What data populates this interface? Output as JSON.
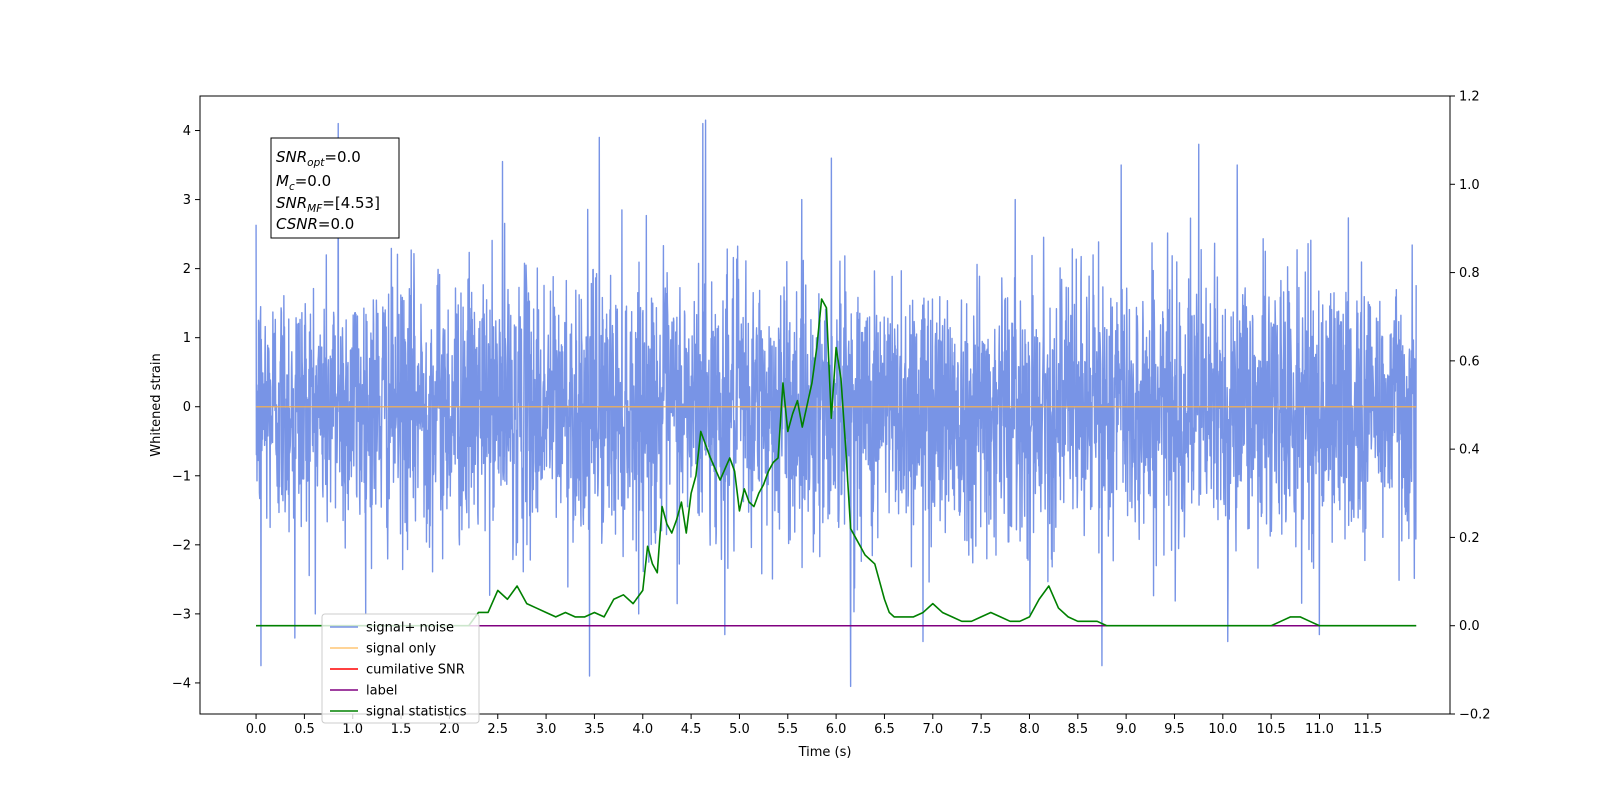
{
  "chart_data": {
    "type": "line",
    "title": "",
    "xlabel": "Time (s)",
    "ylabel": "Whitened strain",
    "xlim": [
      -0.58,
      12.35
    ],
    "ylim": [
      -4.45,
      4.5
    ],
    "y2lim": [
      -0.2,
      1.2
    ],
    "x_ticks": [
      0.0,
      0.5,
      1.0,
      1.5,
      2.0,
      2.5,
      3.0,
      3.5,
      4.0,
      4.5,
      5.0,
      5.5,
      6.0,
      6.5,
      7.0,
      7.5,
      8.0,
      8.5,
      9.0,
      9.5,
      10.0,
      10.5,
      11.0,
      11.5
    ],
    "x_tick_labels": [
      "0.0",
      "0.5",
      "1.0",
      "1.5",
      "2.0",
      "2.5",
      "3.0",
      "3.5",
      "4.0",
      "4.5",
      "5.0",
      "5.5",
      "6.0",
      "6.5",
      "7.0",
      "7.5",
      "8.0",
      "8.5",
      "9.0",
      "9.5",
      "10.0",
      "10.5",
      "11.0",
      "11.5"
    ],
    "y_ticks": [
      4,
      3,
      2,
      1,
      0,
      -1,
      -2,
      -3,
      -4
    ],
    "y_tick_labels": [
      "4",
      "3",
      "2",
      "1",
      "0",
      "−1",
      "−2",
      "−3",
      "−4"
    ],
    "y2_ticks": [
      1.2,
      1.0,
      0.8,
      0.6,
      0.4,
      0.2,
      0.0,
      -0.2
    ],
    "y2_tick_labels": [
      "1.2",
      "1.0",
      "0.8",
      "0.6",
      "0.4",
      "0.2",
      "0.0",
      "−0.2"
    ],
    "grid": false,
    "legend_position": "lower-left",
    "series": [
      {
        "name": "signal+ noise",
        "axis": "left",
        "color": "#7894e6",
        "noise_envelope": {
          "x_range": [
            0.0,
            12.0
          ],
          "typical_range": [
            -1.9,
            1.9
          ],
          "peaks_high": [
            {
              "x": 0.85,
              "y": 4.1
            },
            {
              "x": 4.62,
              "y": 4.1
            },
            {
              "x": 4.65,
              "y": 4.15
            },
            {
              "x": 3.55,
              "y": 3.9
            },
            {
              "x": 9.75,
              "y": 3.8
            },
            {
              "x": 2.55,
              "y": 3.55
            },
            {
              "x": 5.95,
              "y": 3.6
            },
            {
              "x": 8.95,
              "y": 3.5
            },
            {
              "x": 10.15,
              "y": 3.5
            }
          ],
          "peaks_low": [
            {
              "x": 0.05,
              "y": -3.75
            },
            {
              "x": 3.45,
              "y": -3.9
            },
            {
              "x": 6.15,
              "y": -4.05
            },
            {
              "x": 8.75,
              "y": -3.75
            },
            {
              "x": 10.05,
              "y": -3.4
            },
            {
              "x": 6.9,
              "y": -3.4
            },
            {
              "x": 11.0,
              "y": -3.3
            },
            {
              "x": 4.85,
              "y": -3.3
            },
            {
              "x": 0.4,
              "y": -3.35
            }
          ]
        }
      },
      {
        "name": "signal only",
        "axis": "left",
        "color": "#ffb347",
        "x": [
          0.0,
          12.0
        ],
        "y": [
          0.0,
          0.0
        ]
      },
      {
        "name": "cumilative SNR",
        "axis": "right",
        "color": "#ff0000",
        "x": [],
        "y": []
      },
      {
        "name": "label",
        "axis": "right",
        "color": "#800080",
        "x": [
          0.0,
          12.0
        ],
        "y": [
          0.0,
          0.0
        ]
      },
      {
        "name": "signal statistics",
        "axis": "right",
        "color": "#008000",
        "x": [
          0.0,
          2.2,
          2.3,
          2.4,
          2.5,
          2.6,
          2.7,
          2.8,
          2.9,
          3.0,
          3.1,
          3.2,
          3.3,
          3.4,
          3.5,
          3.6,
          3.7,
          3.8,
          3.9,
          4.0,
          4.05,
          4.1,
          4.15,
          4.2,
          4.25,
          4.3,
          4.35,
          4.4,
          4.45,
          4.5,
          4.55,
          4.6,
          4.65,
          4.7,
          4.8,
          4.9,
          4.95,
          5.0,
          5.05,
          5.1,
          5.15,
          5.2,
          5.25,
          5.3,
          5.35,
          5.4,
          5.45,
          5.5,
          5.55,
          5.6,
          5.65,
          5.7,
          5.75,
          5.8,
          5.85,
          5.9,
          5.95,
          6.0,
          6.05,
          6.1,
          6.15,
          6.2,
          6.25,
          6.3,
          6.35,
          6.4,
          6.45,
          6.5,
          6.55,
          6.6,
          6.7,
          6.8,
          6.9,
          7.0,
          7.1,
          7.2,
          7.3,
          7.4,
          7.5,
          7.6,
          7.7,
          7.8,
          7.9,
          8.0,
          8.1,
          8.2,
          8.3,
          8.4,
          8.5,
          8.6,
          8.7,
          8.8,
          8.9,
          9.0,
          10.5,
          10.6,
          10.7,
          10.8,
          10.9,
          11.0,
          11.1,
          12.0
        ],
        "y": [
          0.0,
          0.0,
          0.03,
          0.03,
          0.08,
          0.06,
          0.09,
          0.05,
          0.04,
          0.03,
          0.02,
          0.03,
          0.02,
          0.02,
          0.03,
          0.02,
          0.06,
          0.07,
          0.05,
          0.08,
          0.18,
          0.14,
          0.12,
          0.27,
          0.23,
          0.21,
          0.24,
          0.28,
          0.21,
          0.3,
          0.34,
          0.44,
          0.41,
          0.38,
          0.33,
          0.38,
          0.35,
          0.26,
          0.31,
          0.28,
          0.27,
          0.3,
          0.32,
          0.35,
          0.37,
          0.38,
          0.55,
          0.44,
          0.48,
          0.51,
          0.45,
          0.5,
          0.55,
          0.63,
          0.74,
          0.72,
          0.47,
          0.63,
          0.56,
          0.4,
          0.22,
          0.2,
          0.18,
          0.16,
          0.15,
          0.14,
          0.1,
          0.06,
          0.03,
          0.02,
          0.02,
          0.02,
          0.03,
          0.05,
          0.03,
          0.02,
          0.01,
          0.01,
          0.02,
          0.03,
          0.02,
          0.01,
          0.01,
          0.02,
          0.06,
          0.09,
          0.04,
          0.02,
          0.01,
          0.01,
          0.01,
          0.0,
          0.0,
          0.0,
          0.0,
          0.01,
          0.02,
          0.02,
          0.01,
          0.0,
          0.0,
          0.0
        ]
      }
    ],
    "annotation": {
      "lines": [
        {
          "base": "SNR",
          "sub": "opt",
          "value": "=0.0"
        },
        {
          "base": "M",
          "sub": "c",
          "value": "=0.0"
        },
        {
          "base": "SNR",
          "sub": "MF",
          "value": "=[4.53]"
        },
        {
          "base": "CSNR",
          "sub": "",
          "value": "=0.0"
        }
      ]
    }
  }
}
